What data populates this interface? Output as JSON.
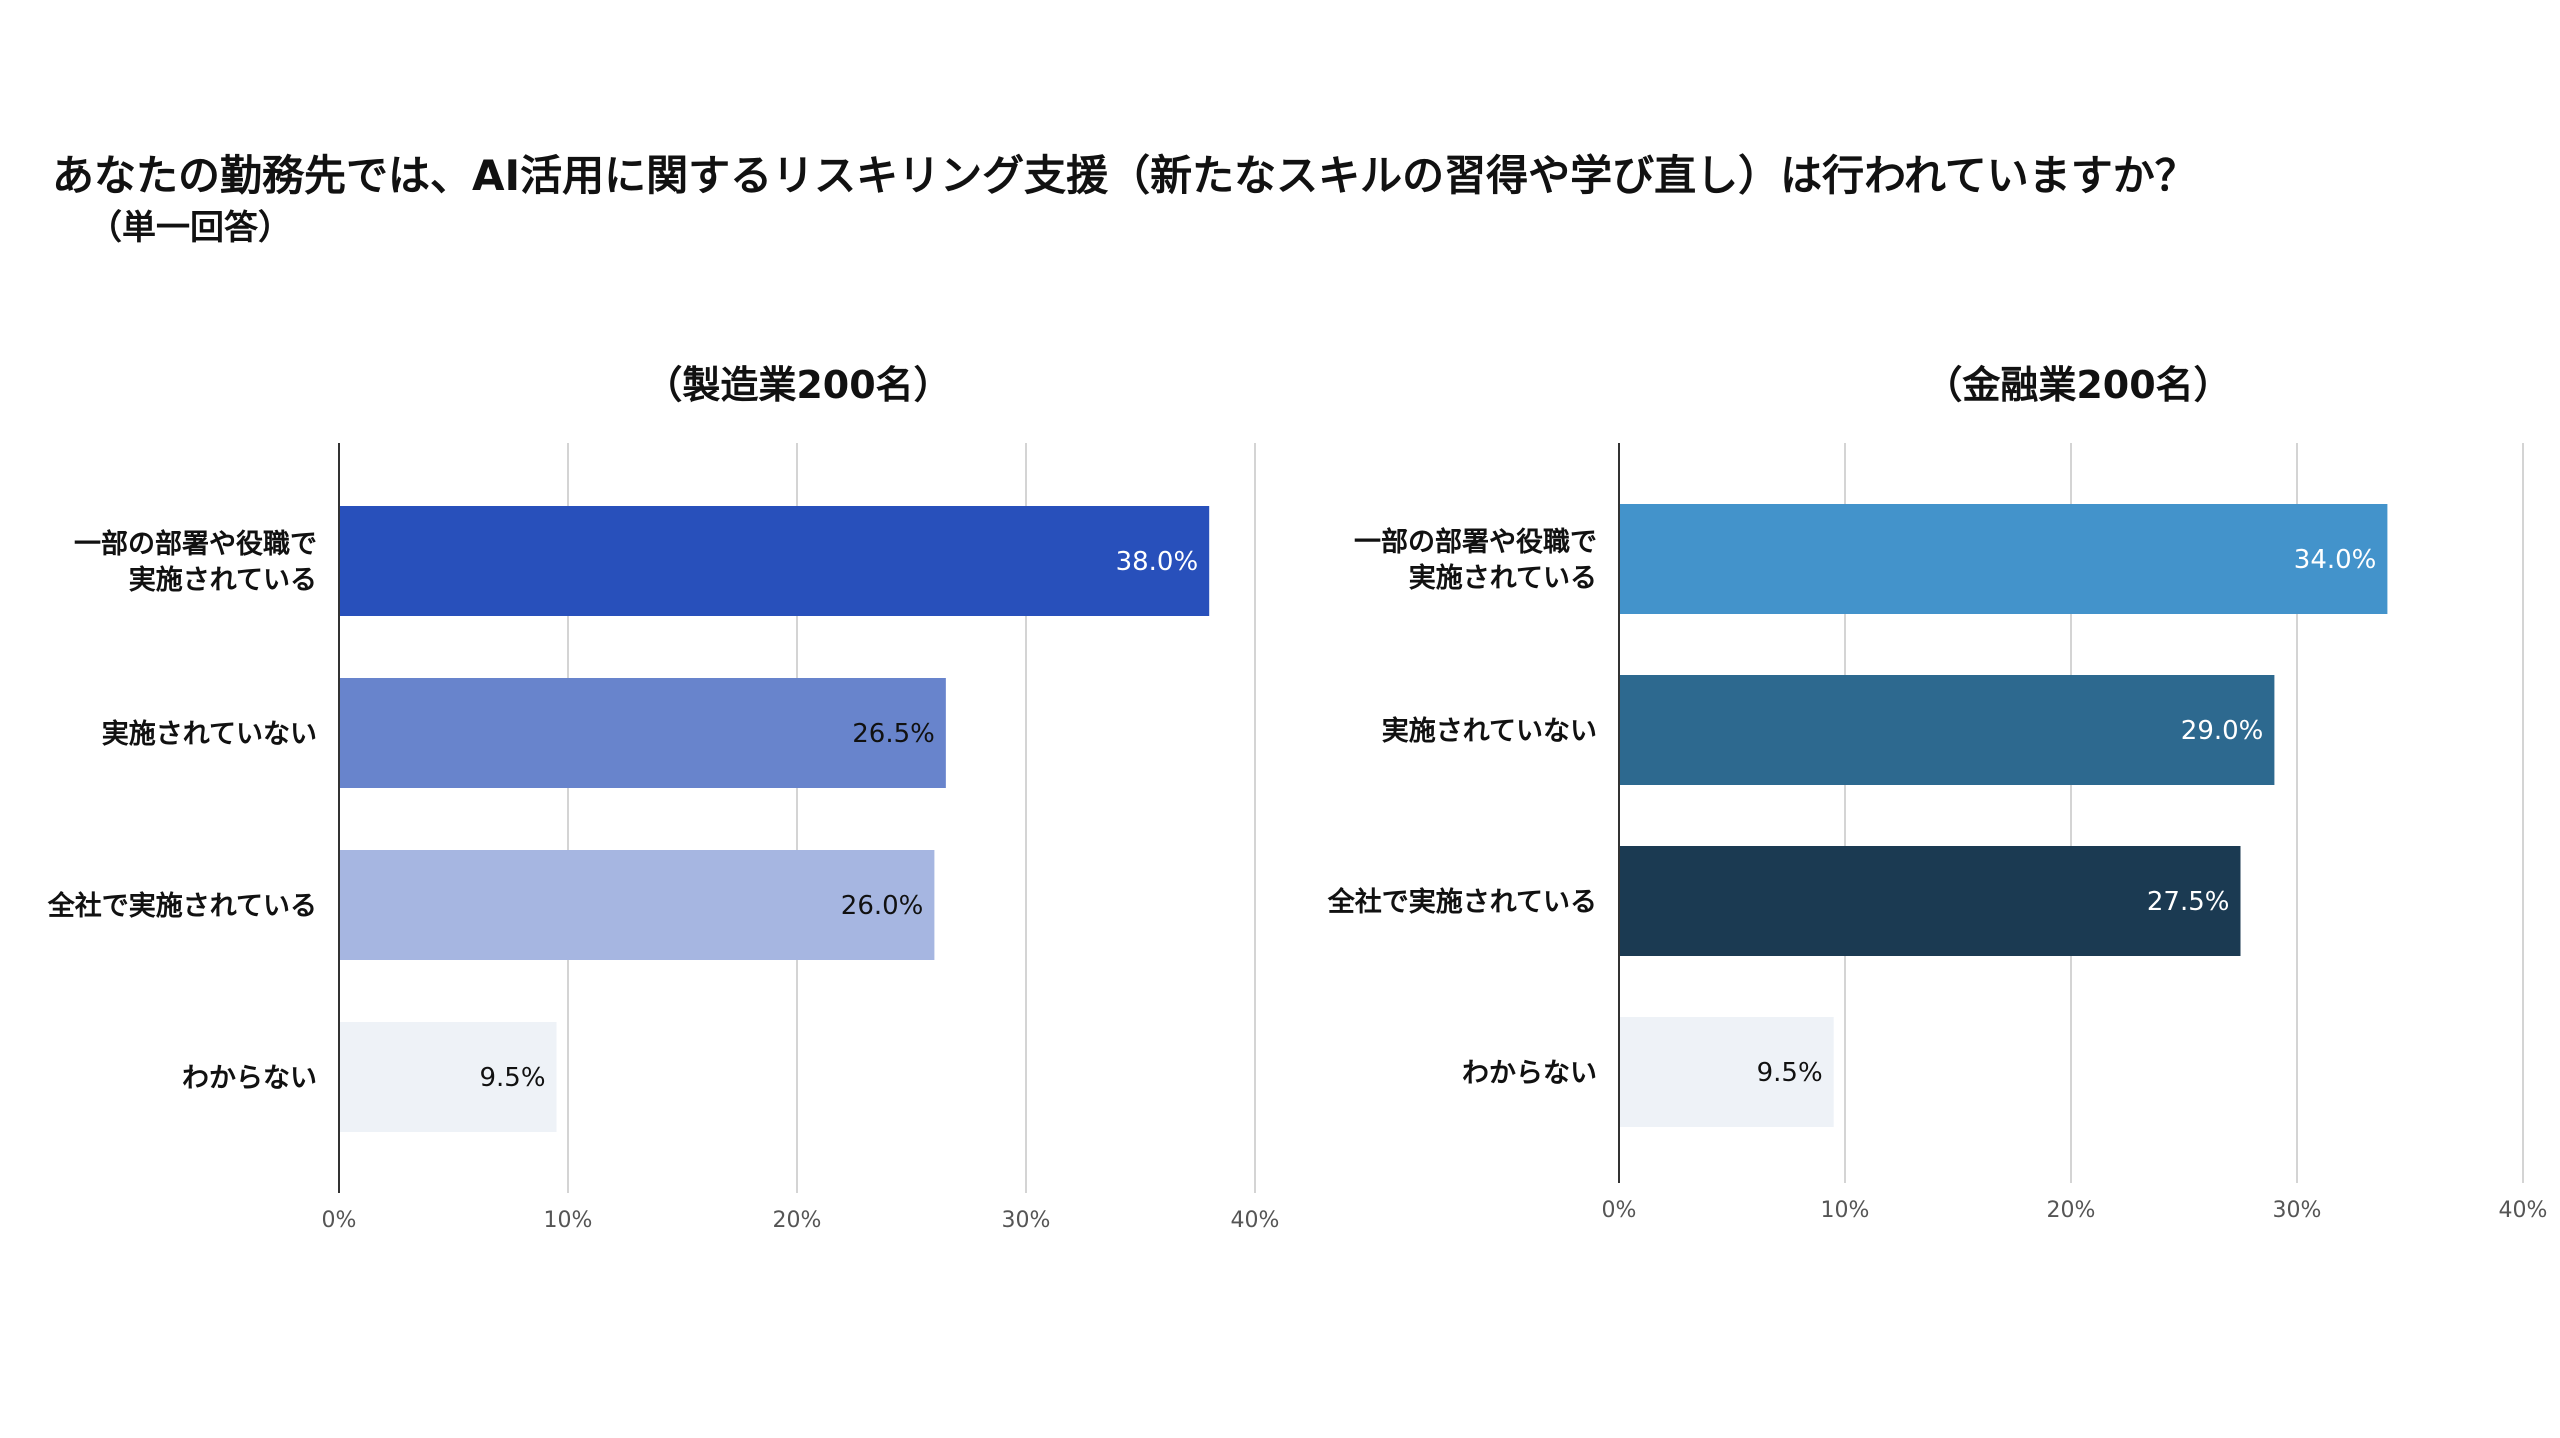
{
  "header": {
    "title": "あなたの勤務先では、AI活用に関するリスキリング支援（新たなスキルの習得や学び直し）は行われていますか？",
    "subtitle": "（単一回答）"
  },
  "chart_data": [
    {
      "type": "bar",
      "orientation": "horizontal",
      "title": "（製造業200名）",
      "categories": [
        [
          "一部の部署や役職で",
          "実施されている"
        ],
        [
          "実施されていない"
        ],
        [
          "全社で実施されている"
        ],
        [
          "わからない"
        ]
      ],
      "values": [
        38.0,
        26.5,
        26.0,
        9.5
      ],
      "value_labels": [
        "38.0%",
        "26.5%",
        "26.0%",
        "9.5%"
      ],
      "colors": [
        "#2850bb",
        "#6884cc",
        "#a6b6e1",
        "#eef2f7"
      ],
      "label_colors": [
        "#ffffff",
        "#111111",
        "#111111",
        "#111111"
      ],
      "xlim": [
        0,
        40
      ],
      "ticks": [
        0,
        10,
        20,
        30,
        40
      ],
      "tick_labels": [
        "0%",
        "10%",
        "20%",
        "30%",
        "40%"
      ],
      "grid": true
    },
    {
      "type": "bar",
      "orientation": "horizontal",
      "title": "（金融業200名）",
      "categories": [
        [
          "一部の部署や役職で",
          "実施されている"
        ],
        [
          "実施されていない"
        ],
        [
          "全社で実施されている"
        ],
        [
          "わからない"
        ]
      ],
      "values": [
        34.0,
        29.0,
        27.5,
        9.5
      ],
      "value_labels": [
        "34.0%",
        "29.0%",
        "27.5%",
        "9.5%"
      ],
      "colors": [
        "#4393cb",
        "#2d698f",
        "#1b3a52",
        "#eef2f7"
      ],
      "label_colors": [
        "#ffffff",
        "#ffffff",
        "#ffffff",
        "#111111"
      ],
      "xlim": [
        0,
        40
      ],
      "ticks": [
        0,
        10,
        20,
        30,
        40
      ],
      "tick_labels": [
        "0%",
        "10%",
        "20%",
        "30%",
        "40%"
      ],
      "grid": true
    }
  ]
}
